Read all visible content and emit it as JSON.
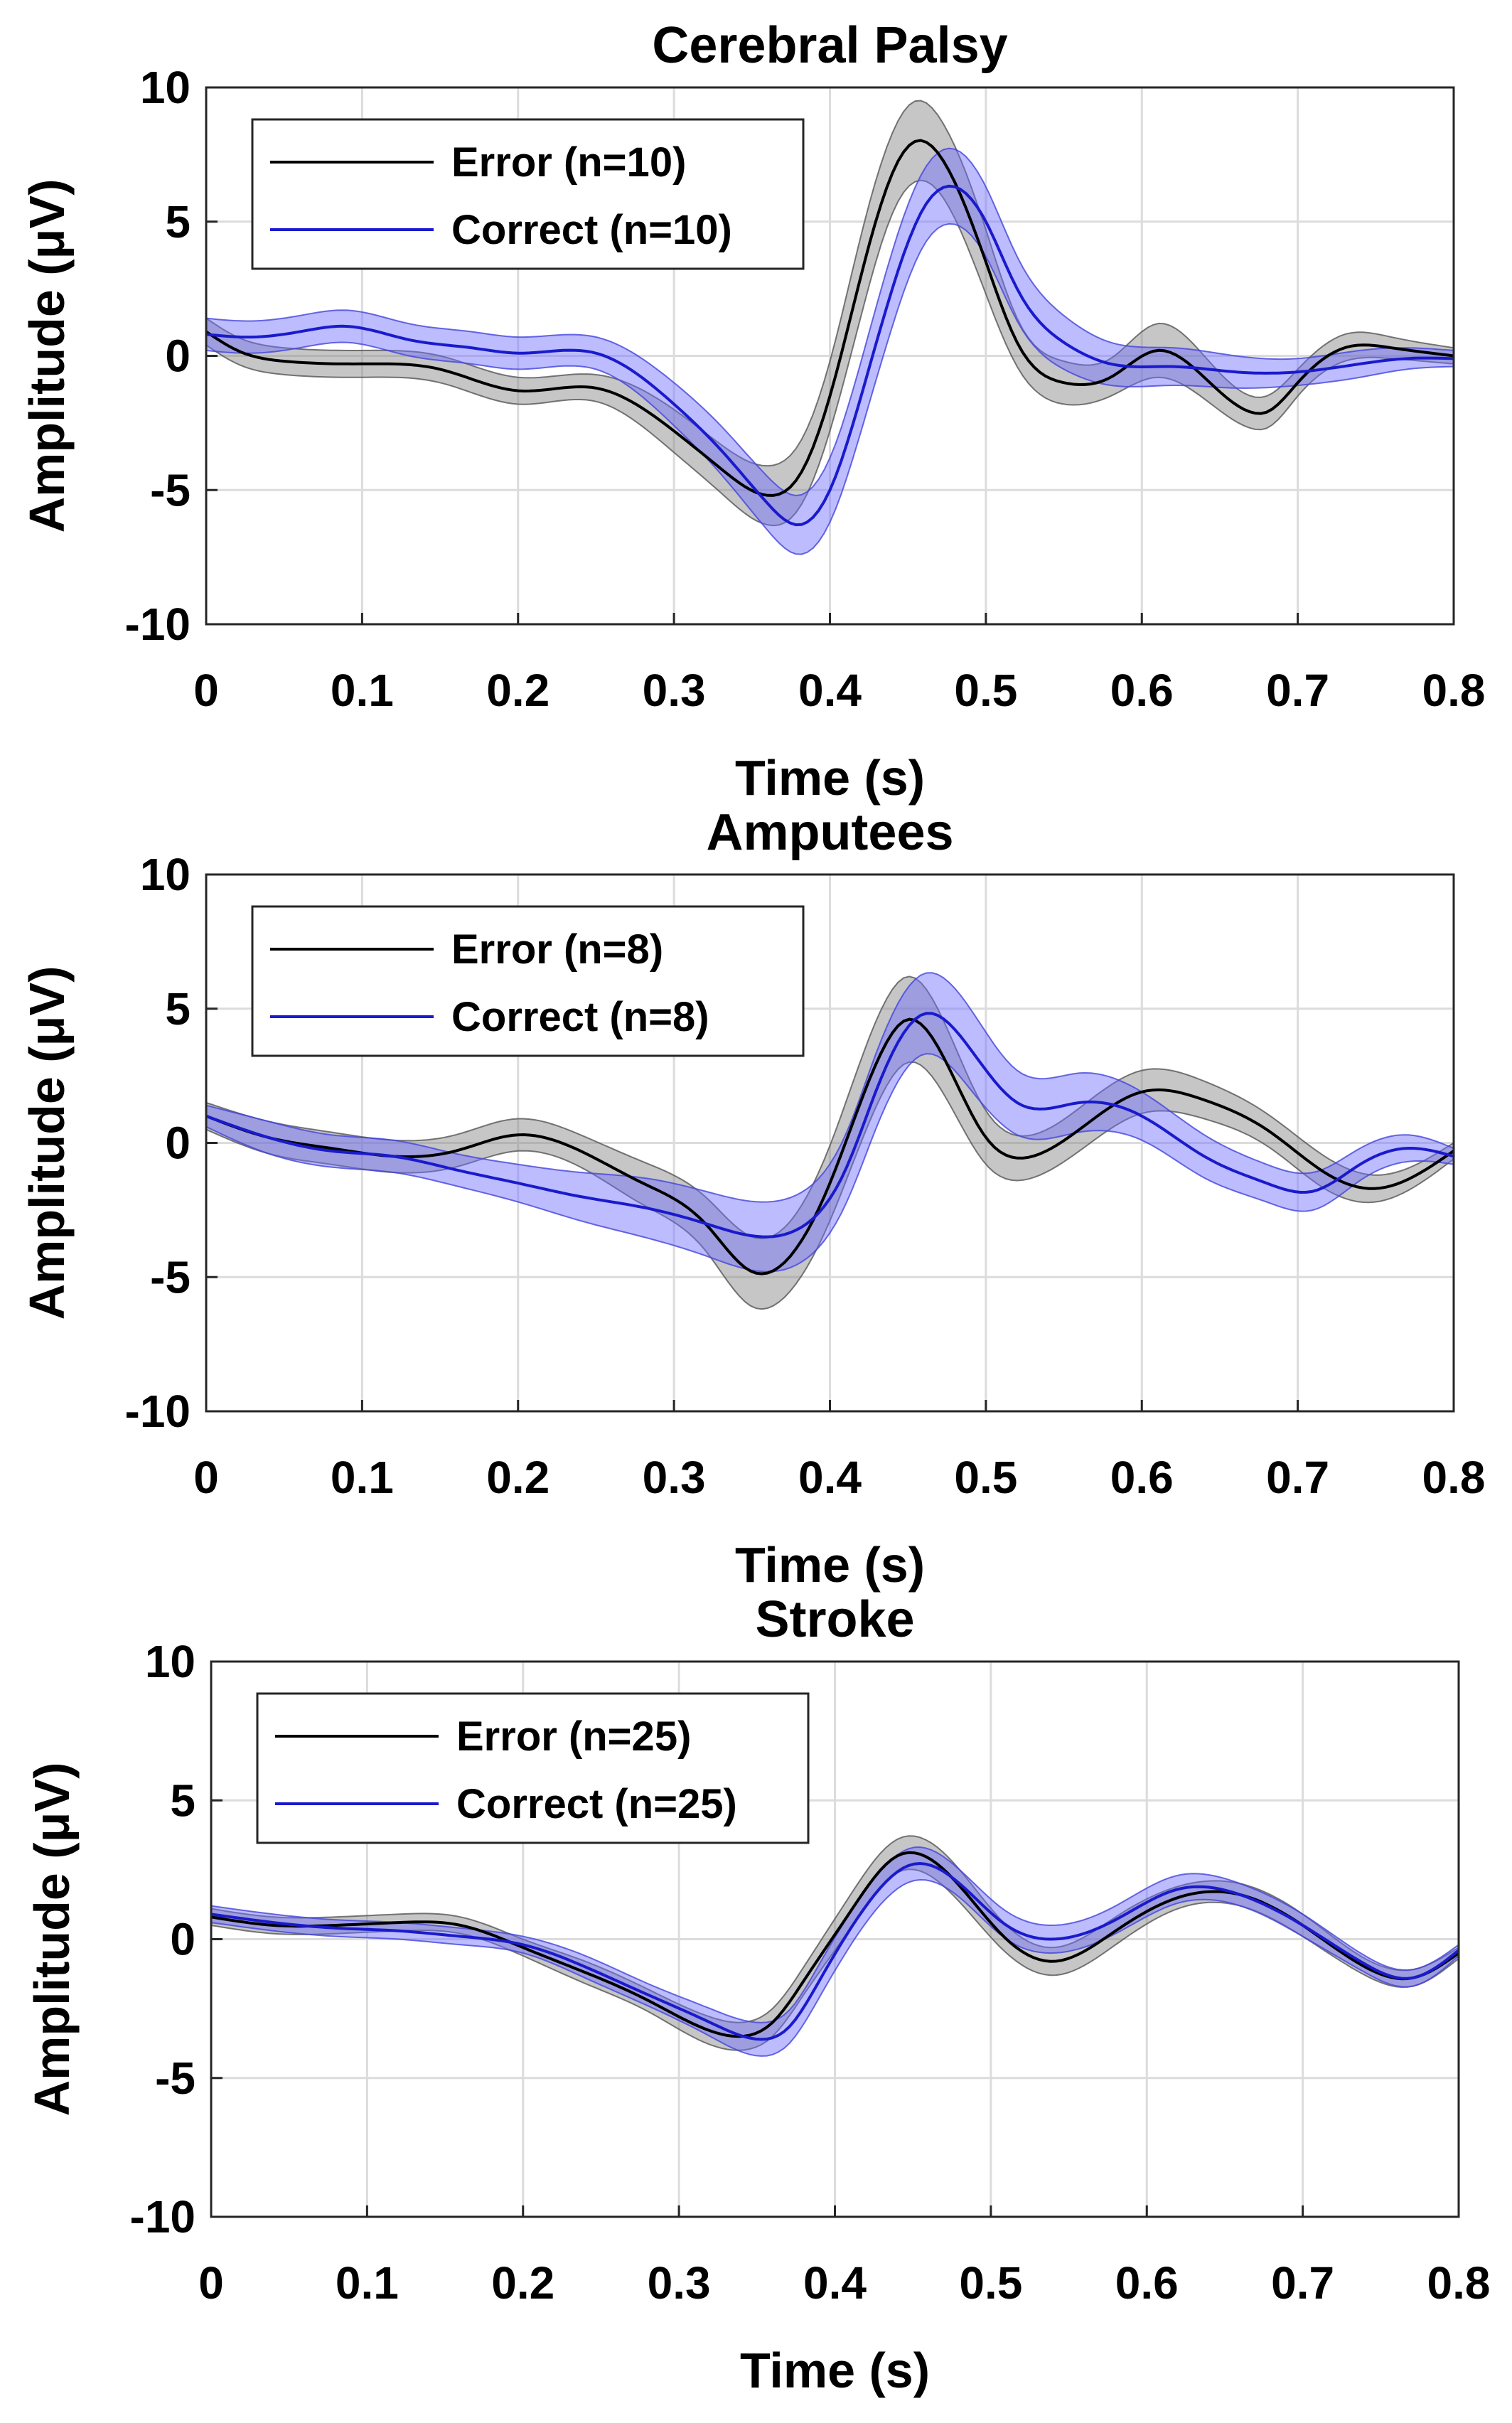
{
  "colors": {
    "error_line": "#000000",
    "error_band": "#808080",
    "correct_line": "#1a1acc",
    "correct_band": "#6a6aff",
    "grid": "#dcdcdc"
  },
  "chart_data": [
    {
      "type": "line",
      "title": "Cerebral Palsy",
      "xlabel": "Time (s)",
      "ylabel": "Amplitude (μV)",
      "xlim": [
        0,
        0.8
      ],
      "ylim": [
        -10,
        10
      ],
      "xticks": [
        0,
        0.1,
        0.2,
        0.3,
        0.4,
        0.5,
        0.6,
        0.7,
        0.8
      ],
      "xtick_labels": [
        "0",
        "0.1",
        "0.2",
        "0.3",
        "0.4",
        "0.5",
        "0.6",
        "0.7",
        "0.8"
      ],
      "yticks": [
        -10,
        -5,
        0,
        5,
        10
      ],
      "ytick_labels": [
        "-10",
        "-5",
        "0",
        "5",
        "10"
      ],
      "grid": true,
      "legend": "top-left",
      "series": [
        {
          "name": "Error (n=10)",
          "color": "#000000",
          "band_color": "#808080",
          "x": [
            0,
            0.02,
            0.05,
            0.1,
            0.15,
            0.2,
            0.25,
            0.3,
            0.33,
            0.36,
            0.38,
            0.4,
            0.42,
            0.44,
            0.455,
            0.47,
            0.5,
            0.52,
            0.55,
            0.58,
            0.61,
            0.64,
            0.67,
            0.68,
            0.7,
            0.73,
            0.76,
            0.8
          ],
          "y": [
            0.9,
            0.2,
            -0.2,
            -0.3,
            -0.5,
            -1.3,
            -1.2,
            -2.8,
            -4.2,
            -5.2,
            -4.5,
            -1.5,
            3.0,
            6.8,
            8.0,
            7.5,
            3.5,
            0.5,
            -1.0,
            -0.8,
            0.2,
            -0.8,
            -2.1,
            -2.1,
            -1.0,
            0.3,
            0.3,
            0.0
          ],
          "band": [
            0.5,
            0.5,
            0.5,
            0.5,
            0.5,
            0.5,
            0.5,
            0.8,
            0.9,
            1.1,
            1.2,
            1.3,
            1.5,
            1.5,
            1.5,
            1.4,
            1.2,
            0.9,
            0.8,
            0.7,
            1.0,
            0.8,
            0.6,
            0.6,
            0.5,
            0.5,
            0.4,
            0.3
          ]
        },
        {
          "name": "Correct (n=10)",
          "color": "#1a1acc",
          "band_color": "#6a6aff",
          "x": [
            0,
            0.03,
            0.06,
            0.09,
            0.13,
            0.17,
            0.2,
            0.25,
            0.3,
            0.33,
            0.36,
            0.38,
            0.4,
            0.42,
            0.44,
            0.46,
            0.48,
            0.5,
            0.52,
            0.55,
            0.58,
            0.62,
            0.66,
            0.7,
            0.74,
            0.77,
            0.8
          ],
          "y": [
            0.8,
            0.7,
            0.9,
            1.1,
            0.6,
            0.3,
            0.1,
            0.1,
            -1.8,
            -3.5,
            -5.5,
            -6.3,
            -5.0,
            -1.5,
            2.5,
            5.5,
            6.3,
            5.0,
            2.5,
            0.5,
            -0.3,
            -0.4,
            -0.6,
            -0.6,
            -0.3,
            -0.1,
            -0.1
          ],
          "band": [
            0.6,
            0.6,
            0.6,
            0.6,
            0.6,
            0.6,
            0.6,
            0.6,
            0.8,
            0.9,
            1.0,
            1.1,
            1.2,
            1.3,
            1.4,
            1.4,
            1.4,
            1.3,
            1.2,
            1.0,
            0.8,
            0.7,
            0.6,
            0.5,
            0.5,
            0.4,
            0.3
          ]
        }
      ]
    },
    {
      "type": "line",
      "title": "Amputees",
      "xlabel": "Time (s)",
      "ylabel": "Amplitude (μV)",
      "xlim": [
        0,
        0.8
      ],
      "ylim": [
        -10,
        10
      ],
      "xticks": [
        0,
        0.1,
        0.2,
        0.3,
        0.4,
        0.5,
        0.6,
        0.7,
        0.8
      ],
      "xtick_labels": [
        "0",
        "0.1",
        "0.2",
        "0.3",
        "0.4",
        "0.5",
        "0.6",
        "0.7",
        "0.8"
      ],
      "yticks": [
        -10,
        -5,
        0,
        5,
        10
      ],
      "ytick_labels": [
        "-10",
        "-5",
        "0",
        "5",
        "10"
      ],
      "grid": true,
      "legend": "top-left",
      "series": [
        {
          "name": "Error (n=8)",
          "color": "#000000",
          "band_color": "#808080",
          "x": [
            0,
            0.04,
            0.08,
            0.12,
            0.16,
            0.2,
            0.24,
            0.28,
            0.32,
            0.35,
            0.37,
            0.4,
            0.43,
            0.45,
            0.47,
            0.5,
            0.53,
            0.56,
            0.6,
            0.64,
            0.68,
            0.72,
            0.75,
            0.8
          ],
          "y": [
            1.0,
            0.2,
            -0.2,
            -0.5,
            -0.3,
            0.3,
            -0.3,
            -1.5,
            -3.0,
            -4.8,
            -4.5,
            -1.5,
            3.0,
            4.6,
            3.5,
            0.2,
            -0.5,
            0.5,
            1.9,
            1.6,
            0.5,
            -1.2,
            -1.7,
            -0.3
          ],
          "band": [
            0.5,
            0.6,
            0.6,
            0.6,
            0.6,
            0.6,
            0.6,
            0.8,
            1.0,
            1.3,
            1.3,
            1.4,
            1.6,
            1.6,
            1.4,
            1.0,
            0.8,
            0.8,
            0.8,
            0.7,
            0.6,
            0.6,
            0.5,
            0.3
          ]
        },
        {
          "name": "Correct (n=8)",
          "color": "#1a1acc",
          "band_color": "#6a6aff",
          "x": [
            0,
            0.04,
            0.08,
            0.12,
            0.16,
            0.2,
            0.24,
            0.28,
            0.32,
            0.36,
            0.38,
            0.41,
            0.43,
            0.46,
            0.49,
            0.52,
            0.56,
            0.6,
            0.64,
            0.68,
            0.71,
            0.74,
            0.77,
            0.8
          ],
          "y": [
            1.0,
            0.2,
            -0.3,
            -0.5,
            -1.0,
            -1.5,
            -2.0,
            -2.4,
            -3.0,
            -3.5,
            -3.2,
            -1.0,
            2.0,
            4.8,
            3.5,
            1.5,
            1.5,
            1.0,
            -0.5,
            -1.5,
            -1.8,
            -0.8,
            -0.2,
            -0.5
          ],
          "band": [
            0.4,
            0.6,
            0.6,
            0.6,
            0.6,
            0.7,
            0.9,
            1.1,
            1.2,
            1.3,
            1.3,
            1.3,
            1.4,
            1.5,
            1.5,
            1.2,
            1.1,
            0.9,
            0.8,
            0.7,
            0.7,
            0.6,
            0.5,
            0.3
          ]
        }
      ]
    },
    {
      "type": "line",
      "title": "Stroke",
      "xlabel": "Time (s)",
      "ylabel": "Amplitude (μV)",
      "xlim": [
        0,
        0.8
      ],
      "ylim": [
        -10,
        10
      ],
      "xticks": [
        0,
        0.1,
        0.2,
        0.3,
        0.4,
        0.5,
        0.6,
        0.7,
        0.8
      ],
      "xtick_labels": [
        "0",
        "0.1",
        "0.2",
        "0.3",
        "0.4",
        "0.5",
        "0.6",
        "0.7",
        "0.8"
      ],
      "yticks": [
        -10,
        -5,
        0,
        5,
        10
      ],
      "ytick_labels": [
        "-10",
        "-5",
        "0",
        "5",
        "10"
      ],
      "grid": true,
      "legend": "top-left",
      "series": [
        {
          "name": "Error (n=25)",
          "color": "#000000",
          "band_color": "#808080",
          "x": [
            0,
            0.04,
            0.08,
            0.12,
            0.16,
            0.2,
            0.24,
            0.28,
            0.32,
            0.34,
            0.36,
            0.38,
            0.41,
            0.44,
            0.47,
            0.51,
            0.54,
            0.58,
            0.62,
            0.66,
            0.7,
            0.74,
            0.77,
            0.8
          ],
          "y": [
            0.8,
            0.5,
            0.5,
            0.6,
            0.5,
            -0.3,
            -1.2,
            -2.2,
            -3.3,
            -3.5,
            -3.0,
            -1.5,
            1.0,
            3.0,
            2.5,
            0.0,
            -0.8,
            0.3,
            1.5,
            1.6,
            0.5,
            -1.0,
            -1.4,
            -0.5
          ],
          "band": [
            0.3,
            0.3,
            0.3,
            0.3,
            0.3,
            0.3,
            0.4,
            0.4,
            0.5,
            0.5,
            0.5,
            0.5,
            0.6,
            0.6,
            0.6,
            0.5,
            0.5,
            0.5,
            0.4,
            0.4,
            0.4,
            0.3,
            0.3,
            0.2
          ]
        },
        {
          "name": "Correct (n=25)",
          "color": "#1a1acc",
          "band_color": "#6a6aff",
          "x": [
            0,
            0.04,
            0.08,
            0.12,
            0.16,
            0.2,
            0.24,
            0.28,
            0.32,
            0.35,
            0.37,
            0.39,
            0.42,
            0.45,
            0.48,
            0.51,
            0.54,
            0.58,
            0.62,
            0.66,
            0.7,
            0.74,
            0.77,
            0.8
          ],
          "y": [
            0.9,
            0.6,
            0.4,
            0.3,
            0.1,
            -0.2,
            -1.0,
            -2.0,
            -3.0,
            -3.6,
            -3.2,
            -1.5,
            1.2,
            2.7,
            2.0,
            0.5,
            0.0,
            0.7,
            1.8,
            1.6,
            0.5,
            -0.9,
            -1.4,
            -0.4
          ],
          "band": [
            0.3,
            0.3,
            0.3,
            0.3,
            0.3,
            0.3,
            0.4,
            0.4,
            0.5,
            0.6,
            0.6,
            0.6,
            0.6,
            0.6,
            0.5,
            0.5,
            0.5,
            0.5,
            0.5,
            0.4,
            0.4,
            0.3,
            0.3,
            0.2
          ]
        }
      ]
    }
  ]
}
